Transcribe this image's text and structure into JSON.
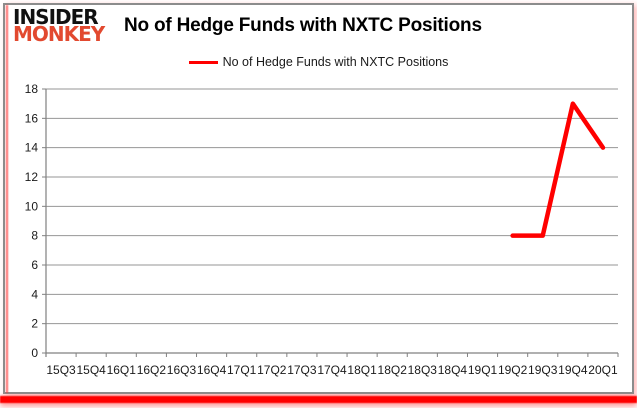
{
  "logo": {
    "line1": "INSIDER",
    "line2": "MONKEY",
    "line1_color": "#111111",
    "line2_color": "#e2492f"
  },
  "header": {
    "title": "No of Hedge Funds with NXTC Positions"
  },
  "legend": {
    "label": "No of Hedge Funds with NXTC Positions",
    "line_color": "#ff0000",
    "position": "top-center"
  },
  "colors": {
    "series_line": "#ff0000",
    "grid": "#969696",
    "axis": "#808080",
    "tick_text": "#1a1a1a",
    "frame_border": "#8c8c8c",
    "accent_bar": "#fe0000",
    "background": "#ffffff"
  },
  "chart_data": {
    "type": "line",
    "title": "No of Hedge Funds with NXTC Positions",
    "xlabel": "",
    "ylabel": "",
    "categories": [
      "15Q3",
      "15Q4",
      "16Q1",
      "16Q2",
      "16Q3",
      "16Q4",
      "17Q1",
      "17Q2",
      "17Q3",
      "17Q4",
      "18Q1",
      "18Q2",
      "18Q3",
      "18Q4",
      "19Q1",
      "19Q2",
      "19Q3",
      "19Q4",
      "20Q1"
    ],
    "series": [
      {
        "name": "No of Hedge Funds with NXTC Positions",
        "color": "#ff0000",
        "values": [
          null,
          null,
          null,
          null,
          null,
          null,
          null,
          null,
          null,
          null,
          null,
          null,
          null,
          null,
          null,
          8,
          8,
          17,
          14
        ]
      }
    ],
    "ylim": [
      0,
      18
    ],
    "ytick_step": 2,
    "yticks": [
      0,
      2,
      4,
      6,
      8,
      10,
      12,
      14,
      16,
      18
    ],
    "grid": true,
    "gridlines": "horizontal",
    "legend_position": "top-center"
  }
}
